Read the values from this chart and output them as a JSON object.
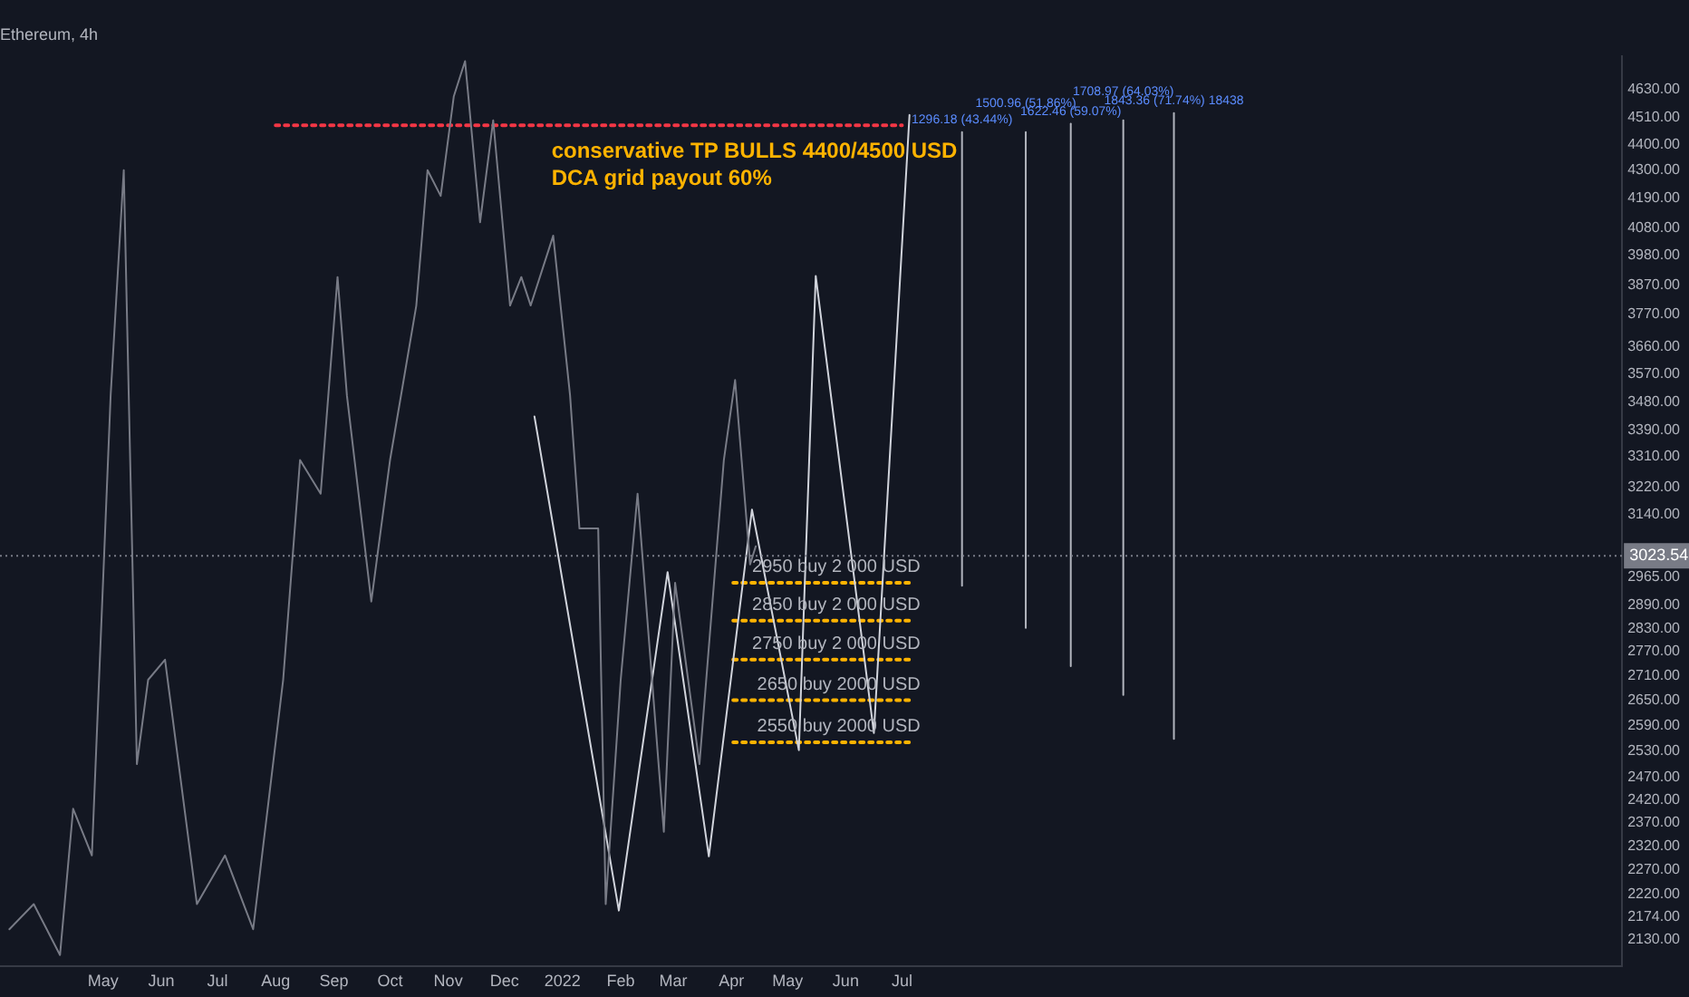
{
  "chart_data": {
    "type": "line",
    "title": "Ethereum, 4h",
    "log": true,
    "grid": false,
    "legend": false,
    "marker": "none",
    "xlim": [
      "2021-03-07",
      "2023-07-20"
    ],
    "xticks": [
      {
        "value": "2021-05-01",
        "label": "May"
      },
      {
        "value": "2021-06-01",
        "label": "Jun"
      },
      {
        "value": "2021-07-01",
        "label": "Jul"
      },
      {
        "value": "2021-08-01",
        "label": "Aug"
      },
      {
        "value": "2021-09-01",
        "label": "Sep"
      },
      {
        "value": "2021-10-01",
        "label": "Oct"
      },
      {
        "value": "2021-11-01",
        "label": "Nov"
      },
      {
        "value": "2021-12-01",
        "label": "Dec"
      },
      {
        "value": "2022-01-01",
        "label": "2022"
      },
      {
        "value": "2022-02-01",
        "label": "Feb"
      },
      {
        "value": "2022-03-01",
        "label": "Mar"
      },
      {
        "value": "2022-04-01",
        "label": "Apr"
      },
      {
        "value": "2022-05-01",
        "label": "May"
      },
      {
        "value": "2022-06-01",
        "label": "Jun"
      },
      {
        "value": "2022-07-01",
        "label": "Jul"
      }
    ],
    "ylim": [
      2078,
      4773
    ],
    "yticks": [
      {
        "value": 2130,
        "label": "2130.00"
      },
      {
        "value": 2174,
        "label": "2174.00"
      },
      {
        "value": 2220,
        "label": "2220.00"
      },
      {
        "value": 2270,
        "label": "2270.00"
      },
      {
        "value": 2320,
        "label": "2320.00"
      },
      {
        "value": 2370,
        "label": "2370.00"
      },
      {
        "value": 2420,
        "label": "2420.00"
      },
      {
        "value": 2470,
        "label": "2470.00"
      },
      {
        "value": 2530,
        "label": "2530.00"
      },
      {
        "value": 2590,
        "label": "2590.00"
      },
      {
        "value": 2650,
        "label": "2650.00"
      },
      {
        "value": 2710,
        "label": "2710.00"
      },
      {
        "value": 2770,
        "label": "2770.00"
      },
      {
        "value": 2830,
        "label": "2830.00"
      },
      {
        "value": 2890,
        "label": "2890.00"
      },
      {
        "value": 2965,
        "label": "2965.00"
      },
      {
        "value": 3140,
        "label": "3140.00"
      },
      {
        "value": 3220,
        "label": "3220.00"
      },
      {
        "value": 3310,
        "label": "3310.00"
      },
      {
        "value": 3390,
        "label": "3390.00"
      },
      {
        "value": 3480,
        "label": "3480.00"
      },
      {
        "value": 3570,
        "label": "3570.00"
      },
      {
        "value": 3660,
        "label": "3660.00"
      },
      {
        "value": 3770,
        "label": "3770.00"
      },
      {
        "value": 3870,
        "label": "3870.00"
      },
      {
        "value": 3980,
        "label": "3980.00"
      },
      {
        "value": 4080,
        "label": "4080.00"
      },
      {
        "value": 4190,
        "label": "4190.00"
      },
      {
        "value": 4300,
        "label": "4300.00"
      },
      {
        "value": 4400,
        "label": "4400.00"
      },
      {
        "value": 4510,
        "label": "4510.00"
      },
      {
        "value": 4630,
        "label": "4630.00"
      }
    ],
    "ref_lines": [
      {
        "axis": "y",
        "value": 3023.54,
        "label": "3023.54",
        "color": "#787b86"
      }
    ],
    "annotations": [
      "conservative TP BULLS 4400/4500 USD",
      "DCA grid payout 60%",
      {
        "text": "1296.18 (43.44%)",
        "x": "2022-08-02",
        "y": 4452
      },
      {
        "text": "1500.96 (51.86%)",
        "x": "2022-09-05",
        "y": 4452
      },
      {
        "text": "1622.46 (59.07%)",
        "x": "2022-09-29",
        "y": 4486
      },
      {
        "text": "1708.97 (64.03%)",
        "x": "2022-10-27",
        "y": 4500
      },
      {
        "text": "1843.36 (71.74%) 18438",
        "x": "2022-11-23",
        "y": 4530
      }
    ],
    "series": [
      {
        "color": "#787b86",
        "x": [
          "2021-03-12",
          "2021-03-25",
          "2021-04-08",
          "2021-04-15",
          "2021-04-25",
          "2021-05-05",
          "2021-05-12",
          "2021-05-19",
          "2021-05-25",
          "2021-06-03",
          "2021-06-20",
          "2021-07-05",
          "2021-07-20",
          "2021-08-05",
          "2021-08-14",
          "2021-08-25",
          "2021-09-03",
          "2021-09-08",
          "2021-09-21",
          "2021-10-01",
          "2021-10-15",
          "2021-10-21",
          "2021-10-28",
          "2021-11-04",
          "2021-11-10",
          "2021-11-18",
          "2021-11-25",
          "2021-12-04",
          "2021-12-10",
          "2021-12-15",
          "2021-12-27",
          "2022-01-05",
          "2022-01-10",
          "2022-01-20",
          "2022-01-24",
          "2022-02-01",
          "2022-02-10",
          "2022-02-24",
          "2022-03-02",
          "2022-03-15",
          "2022-03-28",
          "2022-04-03",
          "2022-04-11",
          "2022-04-14"
        ],
        "values": [
          2150,
          2200,
          2100,
          2400,
          2300,
          3500,
          4300,
          2500,
          2700,
          2750,
          2200,
          2300,
          2150,
          2700,
          3300,
          3200,
          3900,
          3500,
          2900,
          3300,
          3800,
          4300,
          4200,
          4600,
          4750,
          4100,
          4500,
          3800,
          3900,
          3800,
          4050,
          3500,
          3100,
          3100,
          2200,
          2700,
          3200,
          2350,
          2950,
          2500,
          3300,
          3550,
          3000,
          3050
        ]
      },
      {
        "color": "#d1d4dc",
        "x": [
          "2021-12-17",
          "2022-01-31",
          "2022-02-26",
          "2022-03-20",
          "2022-04-12",
          "2022-05-07",
          "2022-05-16",
          "2022-06-16",
          "2022-07-05"
        ],
        "values": [
          3434,
          2187,
          2979,
          2298,
          3154,
          2532,
          3904,
          2572,
          4522
        ]
      },
      {
        "color": "#f23645",
        "line_style": "dotted",
        "x": [
          "2021-08-01",
          "2022-07-01"
        ],
        "values": [
          4480,
          4480
        ]
      },
      {
        "name": "2950 buy 2 000 USD",
        "color": "#ffb300",
        "line_style": "dotted",
        "x": [
          "2022-04-02",
          "2022-07-05"
        ],
        "values": [
          2950,
          2950
        ]
      },
      {
        "name": "2850 buy 2 000 USD",
        "color": "#ffb300",
        "line_style": "dotted",
        "x": [
          "2022-04-02",
          "2022-07-05"
        ],
        "values": [
          2850,
          2850
        ]
      },
      {
        "name": "2750 buy 2 000 USD",
        "color": "#ffb300",
        "line_style": "dotted",
        "x": [
          "2022-04-02",
          "2022-07-05"
        ],
        "values": [
          2750,
          2750
        ]
      },
      {
        "name": "2650 buy 2000 USD",
        "color": "#ffb300",
        "line_style": "dotted",
        "x": [
          "2022-04-02",
          "2022-07-05"
        ],
        "values": [
          2650,
          2650
        ]
      },
      {
        "name": "2550 buy 2000 USD",
        "color": "#ffb300",
        "line_style": "dotted",
        "x": [
          "2022-04-02",
          "2022-07-05"
        ],
        "values": [
          2550,
          2550
        ]
      },
      {
        "color": "#b2b5be",
        "x": [
          "2022-08-02",
          "2022-08-02"
        ],
        "values": [
          2942,
          4452
        ]
      },
      {
        "color": "#b2b5be",
        "x": [
          "2022-09-05",
          "2022-09-05"
        ],
        "values": [
          2831,
          4452
        ]
      },
      {
        "color": "#b2b5be",
        "x": [
          "2022-09-29",
          "2022-09-29"
        ],
        "values": [
          2734,
          4486
        ]
      },
      {
        "color": "#b2b5be",
        "x": [
          "2022-10-27",
          "2022-10-27"
        ],
        "values": [
          2663,
          4500
        ]
      },
      {
        "color": "#b2b5be",
        "x": [
          "2022-11-23",
          "2022-11-23"
        ],
        "values": [
          2558,
          4530
        ]
      }
    ]
  }
}
